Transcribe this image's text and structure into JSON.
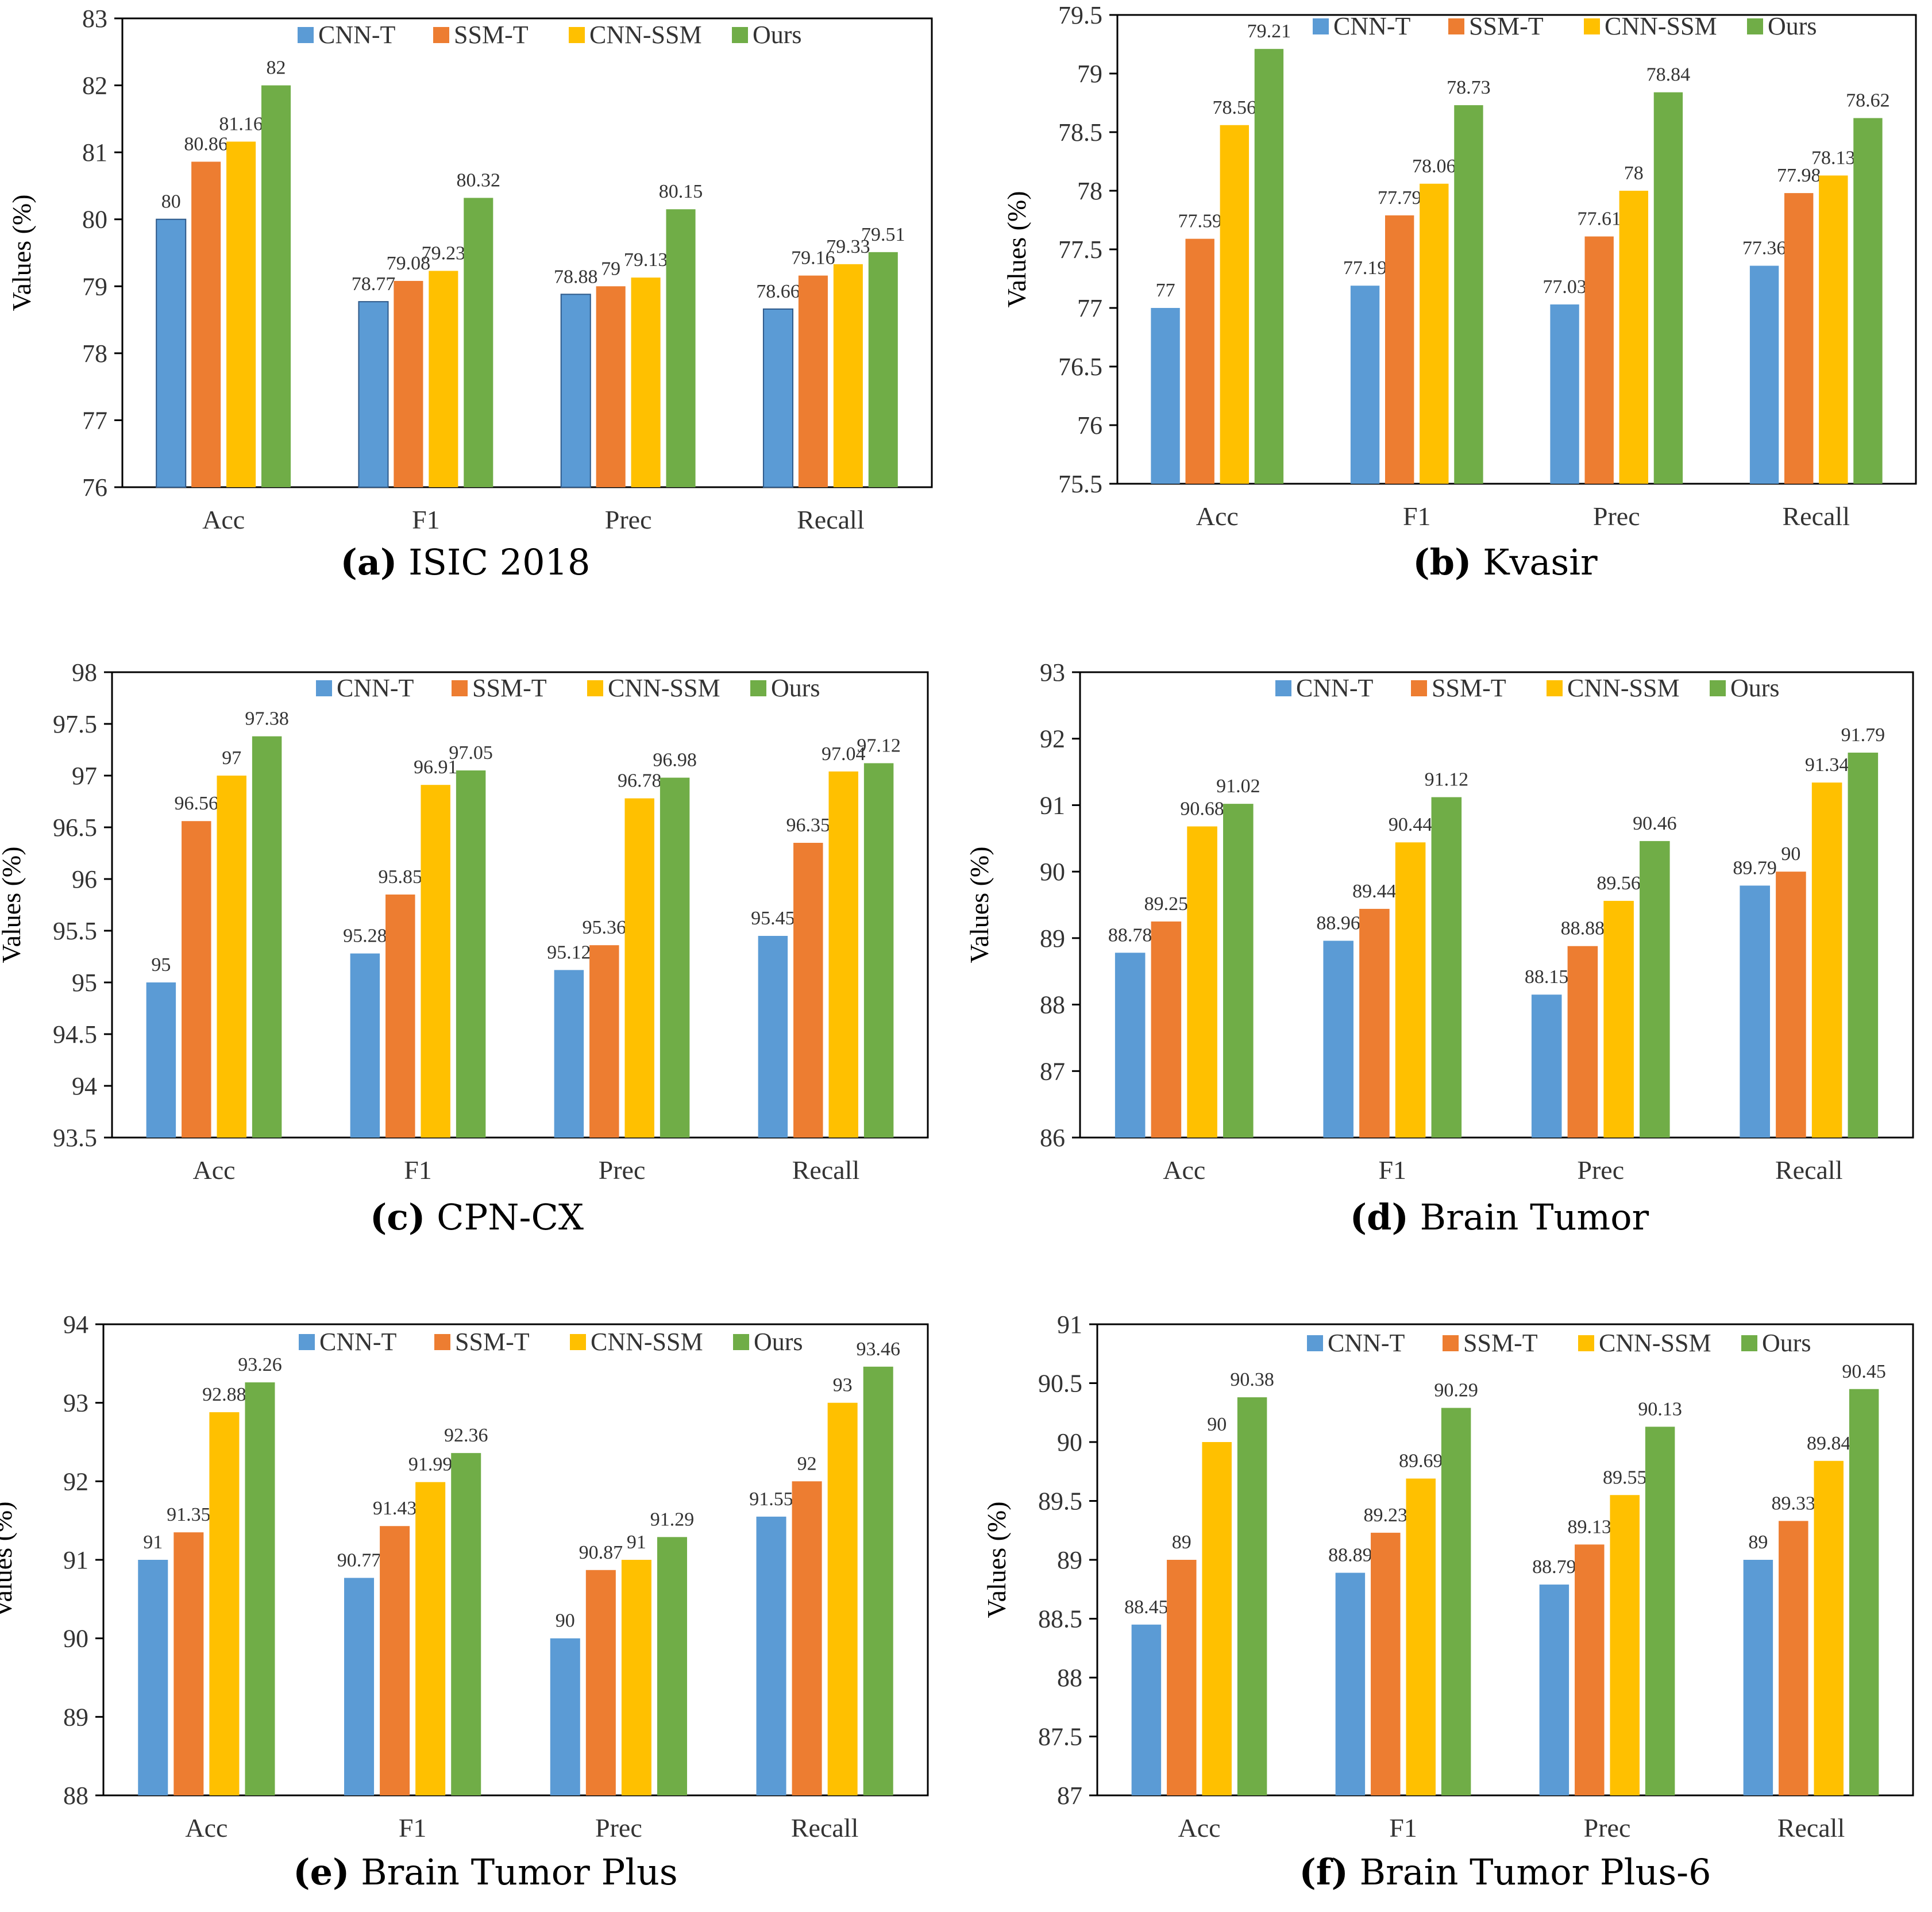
{
  "series_colors": {
    "CNN-T": "#5b9bd5",
    "SSM-T": "#ed7d31",
    "CNN-SSM": "#ffc000",
    "Ours": "#70ad47"
  },
  "chart_data": [
    {
      "type": "bar",
      "caption_letter": "(a)",
      "caption_text": "ISIC 2018",
      "ylabel": "Values (%)",
      "ylim": [
        76,
        83
      ],
      "ytick_step": 1,
      "ytick_labels": [
        "76",
        "77",
        "78",
        "79",
        "80",
        "81",
        "82",
        "83"
      ],
      "categories": [
        "Acc",
        "F1",
        "Prec",
        "Recall"
      ],
      "legend_position": "top",
      "series": [
        {
          "name": "CNN-T",
          "values": [
            80,
            78.77,
            78.88,
            78.66
          ],
          "labels": [
            "80",
            "78.77",
            "78.88",
            "78.66"
          ]
        },
        {
          "name": "SSM-T",
          "values": [
            80.86,
            79.08,
            79,
            79.16
          ],
          "labels": [
            "80.86",
            "79.08",
            "79",
            "79.16"
          ]
        },
        {
          "name": "CNN-SSM",
          "values": [
            81.16,
            79.23,
            79.13,
            79.33
          ],
          "labels": [
            "81.16",
            "79.23",
            "79.13",
            "79.33"
          ]
        },
        {
          "name": "Ours",
          "values": [
            82,
            80.32,
            80.15,
            79.51
          ],
          "labels": [
            "82",
            "80.32",
            "80.15",
            "79.51"
          ]
        }
      ]
    },
    {
      "type": "bar",
      "caption_letter": "(b)",
      "caption_text": "Kvasir",
      "ylabel": "Values (%)",
      "ylim": [
        75.5,
        79.5
      ],
      "ytick_step": 0.5,
      "ytick_labels": [
        "75.5",
        "76",
        "76.5",
        "77",
        "77.5",
        "78",
        "78.5",
        "79",
        "79.5"
      ],
      "categories": [
        "Acc",
        "F1",
        "Prec",
        "Recall"
      ],
      "legend_position": "top",
      "series": [
        {
          "name": "CNN-T",
          "values": [
            77,
            77.19,
            77.03,
            77.36
          ],
          "labels": [
            "77",
            "77.19",
            "77.03",
            "77.36"
          ]
        },
        {
          "name": "SSM-T",
          "values": [
            77.59,
            77.79,
            77.61,
            77.98
          ],
          "labels": [
            "77.59",
            "77.79",
            "77.61",
            "77.98"
          ]
        },
        {
          "name": "CNN-SSM",
          "values": [
            78.56,
            78.06,
            78,
            78.13
          ],
          "labels": [
            "78.56",
            "78.06",
            "78",
            "78.13"
          ]
        },
        {
          "name": "Ours",
          "values": [
            79.21,
            78.73,
            78.84,
            78.62
          ],
          "labels": [
            "79.21",
            "78.73",
            "78.84",
            "78.62"
          ]
        }
      ]
    },
    {
      "type": "bar",
      "caption_letter": "(c)",
      "caption_text": "CPN-CX",
      "ylabel": "Values (%)",
      "ylim": [
        93.5,
        98
      ],
      "ytick_step": 0.5,
      "ytick_labels": [
        "93.5",
        "94",
        "94.5",
        "95",
        "95.5",
        "96",
        "96.5",
        "97",
        "97.5",
        "98"
      ],
      "categories": [
        "Acc",
        "F1",
        "Prec",
        "Recall"
      ],
      "legend_position": "top",
      "series": [
        {
          "name": "CNN-T",
          "values": [
            95,
            95.28,
            95.12,
            95.45
          ],
          "labels": [
            "95",
            "95.28",
            "95.12",
            "95.45"
          ]
        },
        {
          "name": "SSM-T",
          "values": [
            96.56,
            95.85,
            95.36,
            96.35
          ],
          "labels": [
            "96.56",
            "95.85",
            "95.36",
            "96.35"
          ]
        },
        {
          "name": "CNN-SSM",
          "values": [
            97,
            96.91,
            96.78,
            97.04
          ],
          "labels": [
            "97",
            "96.91",
            "96.78",
            "97.04"
          ]
        },
        {
          "name": "Ours",
          "values": [
            97.38,
            97.05,
            96.98,
            97.12
          ],
          "labels": [
            "97.38",
            "97.05",
            "96.98",
            "97.12"
          ]
        }
      ]
    },
    {
      "type": "bar",
      "caption_letter": "(d)",
      "caption_text": "Brain Tumor",
      "ylabel": "Values (%)",
      "ylim": [
        86,
        93
      ],
      "ytick_step": 1,
      "ytick_labels": [
        "86",
        "87",
        "88",
        "89",
        "90",
        "91",
        "92",
        "93"
      ],
      "categories": [
        "Acc",
        "F1",
        "Prec",
        "Recall"
      ],
      "legend_position": "top",
      "series": [
        {
          "name": "CNN-T",
          "values": [
            88.78,
            88.96,
            88.15,
            89.79
          ],
          "labels": [
            "88.78",
            "88.96",
            "88.15",
            "89.79"
          ]
        },
        {
          "name": "SSM-T",
          "values": [
            89.25,
            89.44,
            88.88,
            90
          ],
          "labels": [
            "89.25",
            "89.44",
            "88.88",
            "90"
          ]
        },
        {
          "name": "CNN-SSM",
          "values": [
            90.68,
            90.44,
            89.56,
            91.34
          ],
          "labels": [
            "90.68",
            "90.44",
            "89.56",
            "91.34"
          ]
        },
        {
          "name": "Ours",
          "values": [
            91.02,
            91.12,
            90.46,
            91.79
          ],
          "labels": [
            "91.02",
            "91.12",
            "90.46",
            "91.79"
          ]
        }
      ]
    },
    {
      "type": "bar",
      "caption_letter": "(e)",
      "caption_text": "Brain Tumor Plus",
      "ylabel": "Values (%)",
      "ylim": [
        88,
        94
      ],
      "ytick_step": 1,
      "ytick_labels": [
        "88",
        "89",
        "90",
        "91",
        "92",
        "93",
        "94"
      ],
      "categories": [
        "Acc",
        "F1",
        "Prec",
        "Recall"
      ],
      "legend_position": "top",
      "series": [
        {
          "name": "CNN-T",
          "values": [
            91,
            90.77,
            90,
            91.55
          ],
          "labels": [
            "91",
            "90.77",
            "90",
            "91.55"
          ]
        },
        {
          "name": "SSM-T",
          "values": [
            91.35,
            91.43,
            90.87,
            92
          ],
          "labels": [
            "91.35",
            "91.43",
            "90.87",
            "92"
          ]
        },
        {
          "name": "CNN-SSM",
          "values": [
            92.88,
            91.99,
            91,
            93
          ],
          "labels": [
            "92.88",
            "91.99",
            "91",
            "93"
          ]
        },
        {
          "name": "Ours",
          "values": [
            93.26,
            92.36,
            91.29,
            93.46
          ],
          "labels": [
            "93.26",
            "92.36",
            "91.29",
            "93.46"
          ]
        }
      ]
    },
    {
      "type": "bar",
      "caption_letter": "(f)",
      "caption_text": "Brain Tumor Plus-6",
      "ylabel": "Values (%)",
      "ylim": [
        87,
        91
      ],
      "ytick_step": 0.5,
      "ytick_labels": [
        "87",
        "87.5",
        "88",
        "88.5",
        "89",
        "89.5",
        "90",
        "90.5",
        "91"
      ],
      "categories": [
        "Acc",
        "F1",
        "Prec",
        "Recall"
      ],
      "legend_position": "top",
      "series": [
        {
          "name": "CNN-T",
          "values": [
            88.45,
            88.89,
            88.79,
            89
          ],
          "labels": [
            "88.45",
            "88.89",
            "88.79",
            "89"
          ]
        },
        {
          "name": "SSM-T",
          "values": [
            89,
            89.23,
            89.13,
            89.33
          ],
          "labels": [
            "89",
            "89.23",
            "89.13",
            "89.33"
          ]
        },
        {
          "name": "CNN-SSM",
          "values": [
            90,
            89.69,
            89.55,
            89.84
          ],
          "labels": [
            "90",
            "89.69",
            "89.55",
            "89.84"
          ]
        },
        {
          "name": "Ours",
          "values": [
            90.38,
            90.29,
            90.13,
            90.45
          ],
          "labels": [
            "90.38",
            "90.29",
            "90.13",
            "90.45"
          ]
        }
      ]
    }
  ]
}
